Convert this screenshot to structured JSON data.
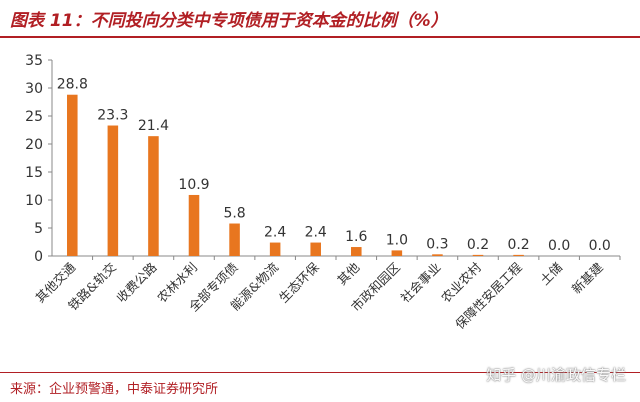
{
  "title": "图表 11：不同投向分类中专项债用于资本金的比例（%）",
  "source": "来源：企业预警通，中泰证券研究所",
  "watermark": "知乎 @川渝政信专栏",
  "colors": {
    "bar": "#e8761f",
    "accent": "#b11f24",
    "axis": "#333333"
  },
  "chart_data": {
    "type": "bar",
    "title": "",
    "xlabel": "",
    "ylabel": "",
    "ylim": [
      0,
      35
    ],
    "yticks": [
      0,
      5,
      10,
      15,
      20,
      25,
      30,
      35
    ],
    "grid": false,
    "categories": [
      "其他交通",
      "铁路&轨交",
      "收费公路",
      "农林水利",
      "全部专项债",
      "能源&物流",
      "生态环保",
      "其他",
      "市政和园区",
      "社会事业",
      "农业农村",
      "保障性安居工程",
      "土储",
      "新基建"
    ],
    "values": [
      28.8,
      23.3,
      21.4,
      10.9,
      5.8,
      2.4,
      2.4,
      1.6,
      1.0,
      0.3,
      0.2,
      0.2,
      0.0,
      0.0
    ],
    "value_labels": [
      "28.8",
      "23.3",
      "21.4",
      "10.9",
      "5.8",
      "2.4",
      "2.4",
      "1.6",
      "1.0",
      "0.3",
      "0.2",
      "0.2",
      "0.0",
      "0.0"
    ]
  }
}
